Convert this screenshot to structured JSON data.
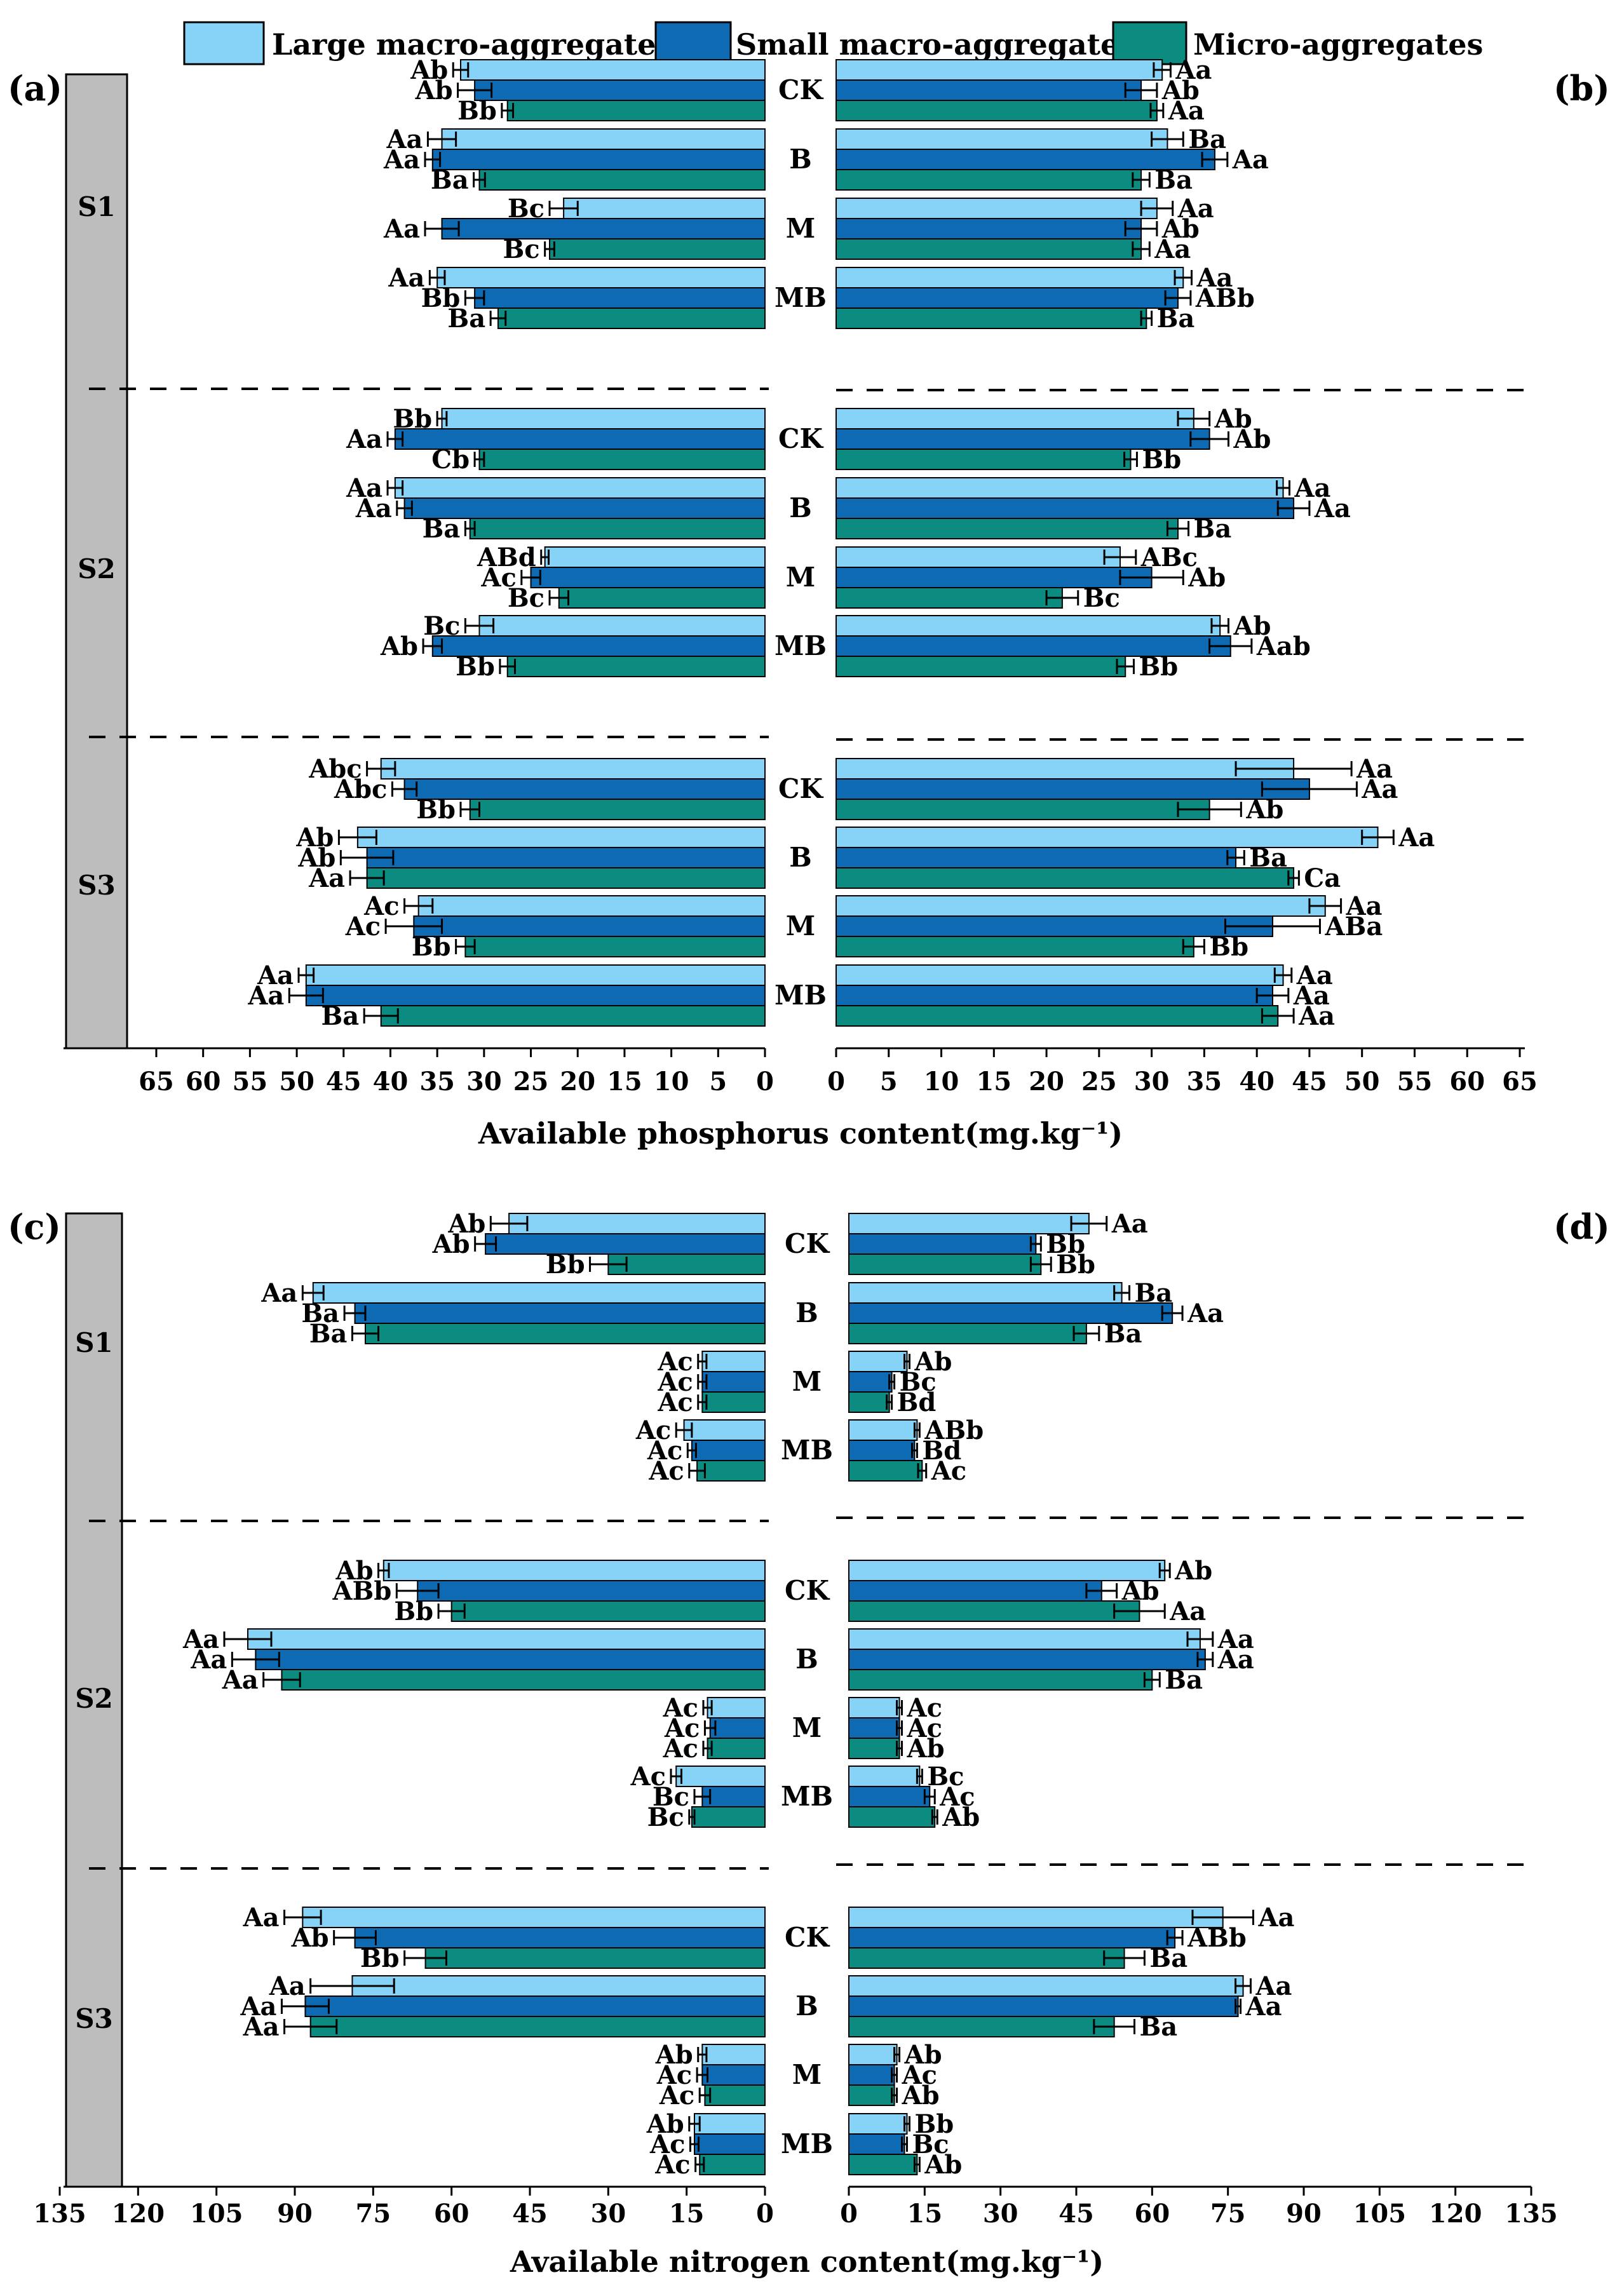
{
  "legend": [
    {
      "label": "Large macro-aggregates",
      "color": "#87D3F7"
    },
    {
      "label": "Small macro-aggregates",
      "color": "#0E6AB2"
    },
    {
      "label": "Micro-aggregates",
      "color": "#0C8B80"
    }
  ],
  "sites": [
    "S1",
    "S2",
    "S3"
  ],
  "treatments": [
    "CK",
    "B",
    "M",
    "MB"
  ],
  "chart_data": [
    {
      "panel": "(a)",
      "type": "bar",
      "orientation": "horizontal",
      "xlabel": "Available phosphorus content(mg.kg⁻¹)",
      "xlim": [
        0,
        65
      ],
      "ticks": [
        0,
        5,
        10,
        15,
        20,
        25,
        30,
        35,
        40,
        45,
        50,
        55,
        60,
        65
      ],
      "values": {
        "S1": {
          "CK": [
            32.5,
            31.0,
            27.5
          ],
          "B": [
            34.5,
            35.5,
            30.5
          ],
          "M": [
            21.5,
            34.5,
            23.0
          ],
          "MB": [
            35.0,
            31.0,
            28.5
          ]
        },
        "S2": {
          "CK": [
            34.5,
            39.5,
            30.5
          ],
          "B": [
            39.5,
            38.5,
            31.5
          ],
          "M": [
            23.5,
            25.0,
            22.0
          ],
          "MB": [
            30.5,
            35.5,
            27.5
          ]
        },
        "S3": {
          "CK": [
            41.0,
            38.5,
            31.5
          ],
          "B": [
            43.5,
            42.5,
            42.5
          ],
          "M": [
            37.0,
            37.5,
            32.0
          ],
          "MB": [
            49.0,
            49.0,
            41.0
          ]
        }
      },
      "errors": {
        "S1": {
          "CK": [
            0.8,
            1.8,
            0.6
          ],
          "B": [
            1.5,
            0.8,
            0.6
          ],
          "M": [
            1.5,
            1.8,
            0.5
          ],
          "MB": [
            0.8,
            1.0,
            0.8
          ]
        },
        "S2": {
          "CK": [
            0.5,
            0.8,
            0.5
          ],
          "B": [
            0.8,
            0.8,
            0.5
          ],
          "M": [
            0.4,
            1.0,
            1.0
          ],
          "MB": [
            1.5,
            1.0,
            0.8
          ]
        },
        "S3": {
          "CK": [
            1.5,
            1.3,
            1.0
          ],
          "B": [
            2.0,
            2.8,
            1.8
          ],
          "M": [
            1.5,
            3.0,
            1.0
          ],
          "MB": [
            0.8,
            1.8,
            1.8
          ]
        }
      },
      "labels": {
        "S1": {
          "CK": [
            "Ab",
            "Ab",
            "Bb"
          ],
          "B": [
            "Aa",
            "Aa",
            "Ba"
          ],
          "M": [
            "Bc",
            "Aa",
            "Bc"
          ],
          "MB": [
            "Aa",
            "Bb",
            "Ba"
          ]
        },
        "S2": {
          "CK": [
            "Bb",
            "Aa",
            "Cb"
          ],
          "B": [
            "Aa",
            "Aa",
            "Ba"
          ],
          "M": [
            "ABd",
            "Ac",
            "Bc"
          ],
          "MB": [
            "Bc",
            "Ab",
            "Bb"
          ]
        },
        "S3": {
          "CK": [
            "Abc",
            "Abc",
            "Bb"
          ],
          "B": [
            "Ab",
            "Ab",
            "Aa"
          ],
          "M": [
            "Ac",
            "Ac",
            "Bb"
          ],
          "MB": [
            "Aa",
            "Aa",
            "Ba"
          ]
        }
      }
    },
    {
      "panel": "(b)",
      "type": "bar",
      "orientation": "horizontal",
      "xlabel": "Available phosphorus content(mg.kg⁻¹)",
      "xlim": [
        0,
        65
      ],
      "ticks": [
        0,
        5,
        10,
        15,
        20,
        25,
        30,
        35,
        40,
        45,
        50,
        55,
        60,
        65
      ],
      "values": {
        "S1": {
          "CK": [
            31.0,
            29.0,
            30.5
          ],
          "B": [
            31.5,
            36.0,
            29.0
          ],
          "M": [
            30.5,
            29.0,
            29.0
          ],
          "MB": [
            33.0,
            32.5,
            29.5
          ]
        },
        "S2": {
          "CK": [
            34.0,
            35.5,
            28.0
          ],
          "B": [
            42.5,
            43.5,
            32.5
          ],
          "M": [
            27.0,
            30.0,
            21.5
          ],
          "MB": [
            36.5,
            37.5,
            27.5
          ]
        },
        "S3": {
          "CK": [
            43.5,
            45.0,
            35.5
          ],
          "B": [
            51.5,
            38.0,
            43.5
          ],
          "M": [
            46.5,
            41.5,
            34.0
          ],
          "MB": [
            42.5,
            41.5,
            42.0
          ]
        }
      },
      "errors": {
        "S1": {
          "CK": [
            0.8,
            1.5,
            0.6
          ],
          "B": [
            1.5,
            1.2,
            0.8
          ],
          "M": [
            1.5,
            1.5,
            0.8
          ],
          "MB": [
            0.8,
            1.2,
            0.5
          ]
        },
        "S2": {
          "CK": [
            1.5,
            1.8,
            0.6
          ],
          "B": [
            0.6,
            1.5,
            1.0
          ],
          "M": [
            1.5,
            3.0,
            1.5
          ],
          "MB": [
            0.8,
            2.0,
            0.8
          ]
        },
        "S3": {
          "CK": [
            5.5,
            4.5,
            3.0
          ],
          "B": [
            1.5,
            0.8,
            0.5
          ],
          "M": [
            1.5,
            4.5,
            1.0
          ],
          "MB": [
            0.8,
            1.5,
            1.5
          ]
        }
      },
      "labels": {
        "S1": {
          "CK": [
            "Aa",
            "Ab",
            "Aa"
          ],
          "B": [
            "Ba",
            "Aa",
            "Ba"
          ],
          "M": [
            "Aa",
            "Ab",
            "Aa"
          ],
          "MB": [
            "Aa",
            "ABb",
            "Ba"
          ]
        },
        "S2": {
          "CK": [
            "Ab",
            "Ab",
            "Bb"
          ],
          "B": [
            "Aa",
            "Aa",
            "Ba"
          ],
          "M": [
            "ABc",
            "Ab",
            "Bc"
          ],
          "MB": [
            "Ab",
            "Aab",
            "Bb"
          ]
        },
        "S3": {
          "CK": [
            "Aa",
            "Aa",
            "Ab"
          ],
          "B": [
            "Aa",
            "Ba",
            "Ca"
          ],
          "M": [
            "Aa",
            "ABa",
            "Bb"
          ],
          "MB": [
            "Aa",
            "Aa",
            "Aa"
          ]
        }
      }
    },
    {
      "panel": "(c)",
      "type": "bar",
      "orientation": "horizontal",
      "xlabel": "Available nitrogen content(mg.kg⁻¹)",
      "xlim": [
        0,
        135
      ],
      "ticks": [
        0,
        15,
        30,
        45,
        60,
        75,
        90,
        105,
        120,
        135
      ],
      "values": {
        "S1": {
          "CK": [
            49.0,
            53.5,
            30.0
          ],
          "B": [
            86.5,
            78.5,
            76.5
          ],
          "M": [
            12.0,
            12.0,
            12.0
          ],
          "MB": [
            15.5,
            14.0,
            13.0
          ]
        },
        "S2": {
          "CK": [
            73.0,
            66.5,
            60.0
          ],
          "B": [
            99.0,
            97.5,
            92.5
          ],
          "M": [
            11.0,
            10.5,
            11.0
          ],
          "MB": [
            17.0,
            12.0,
            14.0
          ]
        },
        "S3": {
          "CK": [
            88.5,
            78.5,
            65.0
          ],
          "B": [
            79.0,
            88.0,
            87.0
          ],
          "M": [
            12.0,
            12.0,
            11.5
          ],
          "MB": [
            13.5,
            13.5,
            12.5
          ]
        }
      },
      "errors": {
        "S1": {
          "CK": [
            3.5,
            2.0,
            3.5
          ],
          "B": [
            2.0,
            2.0,
            2.5
          ],
          "M": [
            0.8,
            0.8,
            0.8
          ],
          "MB": [
            1.5,
            0.8,
            1.5
          ]
        },
        "S2": {
          "CK": [
            1.0,
            4.0,
            2.5
          ],
          "B": [
            4.5,
            4.5,
            3.5
          ],
          "M": [
            0.8,
            1.0,
            0.8
          ],
          "MB": [
            1.0,
            1.5,
            0.5
          ]
        },
        "S3": {
          "CK": [
            3.5,
            4.0,
            4.0
          ],
          "B": [
            8.0,
            4.5,
            5.0
          ],
          "M": [
            0.8,
            1.0,
            1.0
          ],
          "MB": [
            1.0,
            0.8,
            0.8
          ]
        }
      },
      "labels": {
        "S1": {
          "CK": [
            "Ab",
            "Ab",
            "Bb"
          ],
          "B": [
            "Aa",
            "Ba",
            "Ba"
          ],
          "M": [
            "Ac",
            "Ac",
            "Ac"
          ],
          "MB": [
            "Ac",
            "Ac",
            "Ac"
          ]
        },
        "S2": {
          "CK": [
            "Ab",
            "ABb",
            "Bb"
          ],
          "B": [
            "Aa",
            "Aa",
            "Aa"
          ],
          "M": [
            "Ac",
            "Ac",
            "Ac"
          ],
          "MB": [
            "Ac",
            "Bc",
            "Bc"
          ]
        },
        "S3": {
          "CK": [
            "Aa",
            "Ab",
            "Bb"
          ],
          "B": [
            "Aa",
            "Aa",
            "Aa"
          ],
          "M": [
            "Ab",
            "Ac",
            "Ac"
          ],
          "MB": [
            "Ab",
            "Ac",
            "Ac"
          ]
        }
      }
    },
    {
      "panel": "(d)",
      "type": "bar",
      "orientation": "horizontal",
      "xlabel": "Available nitrogen content(mg.kg⁻¹)",
      "xlim": [
        0,
        135
      ],
      "ticks": [
        0,
        15,
        30,
        45,
        60,
        75,
        90,
        105,
        120,
        135
      ],
      "values": {
        "S1": {
          "CK": [
            47.5,
            37.0,
            38.0
          ],
          "B": [
            54.0,
            64.0,
            47.0
          ],
          "M": [
            11.5,
            8.5,
            8.0
          ],
          "MB": [
            13.5,
            13.0,
            14.5
          ]
        },
        "S2": {
          "CK": [
            62.5,
            50.0,
            57.5
          ],
          "B": [
            69.5,
            70.5,
            60.0
          ],
          "M": [
            10.0,
            10.0,
            10.0
          ],
          "MB": [
            14.0,
            16.0,
            17.0
          ]
        },
        "S3": {
          "CK": [
            74.0,
            64.5,
            54.5
          ],
          "B": [
            78.0,
            77.0,
            52.5
          ],
          "M": [
            9.5,
            9.0,
            9.0
          ],
          "MB": [
            11.5,
            11.0,
            13.5
          ]
        }
      },
      "errors": {
        "S1": {
          "CK": [
            3.5,
            1.0,
            2.0
          ],
          "B": [
            1.5,
            2.0,
            2.5
          ],
          "M": [
            0.5,
            0.5,
            0.5
          ],
          "MB": [
            0.5,
            0.5,
            0.8
          ]
        },
        "S2": {
          "CK": [
            1.0,
            3.0,
            5.0
          ],
          "B": [
            2.5,
            1.5,
            1.5
          ],
          "M": [
            0.5,
            0.5,
            0.5
          ],
          "MB": [
            0.5,
            1.0,
            0.5
          ]
        },
        "S3": {
          "CK": [
            6.0,
            1.5,
            4.0
          ],
          "B": [
            1.5,
            0.5,
            4.0
          ],
          "M": [
            0.5,
            0.5,
            0.5
          ],
          "MB": [
            0.5,
            0.5,
            0.5
          ]
        }
      },
      "labels": {
        "S1": {
          "CK": [
            "Aa",
            "Bb",
            "Bb"
          ],
          "B": [
            "Ba",
            "Aa",
            "Ba"
          ],
          "M": [
            "Ab",
            "Bc",
            "Bd"
          ],
          "MB": [
            "ABb",
            "Bd",
            "Ac"
          ]
        },
        "S2": {
          "CK": [
            "Ab",
            "Ab",
            "Aa"
          ],
          "B": [
            "Aa",
            "Aa",
            "Ba"
          ],
          "M": [
            "Ac",
            "Ac",
            "Ab"
          ],
          "MB": [
            "Bc",
            "Ac",
            "Ab"
          ]
        },
        "S3": {
          "CK": [
            "Aa",
            "ABb",
            "Ba"
          ],
          "B": [
            "Aa",
            "Aa",
            "Ba"
          ],
          "M": [
            "Ab",
            "Ac",
            "Ab"
          ],
          "MB": [
            "Bb",
            "Bc",
            "Ab"
          ]
        }
      }
    }
  ]
}
